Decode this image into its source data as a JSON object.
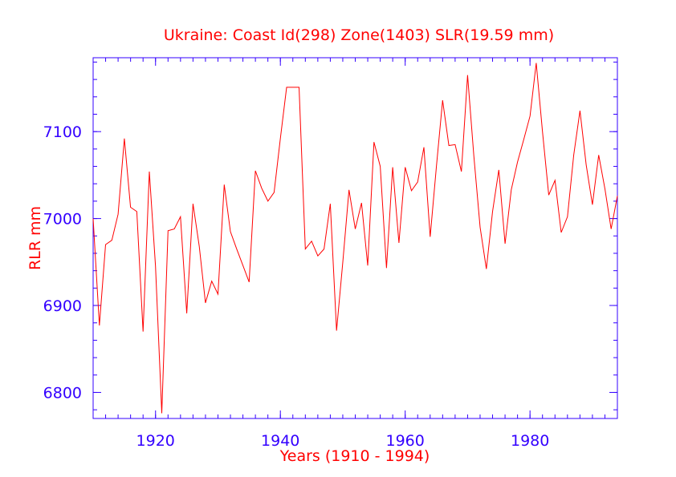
{
  "chart_data": {
    "type": "line",
    "title": "Ukraine:  Coast Id(298) Zone(1403) SLR(19.59 mm)",
    "xlabel": "Years (1910 - 1994)",
    "ylabel": "RLR mm",
    "xlim": [
      1910,
      1994
    ],
    "ylim": [
      6770,
      7185
    ],
    "x_ticks": [
      1920,
      1940,
      1960,
      1980
    ],
    "y_ticks": [
      6800,
      6900,
      7000,
      7100
    ],
    "x_minor_step": 2,
    "y_minor_step": 20,
    "grid": false,
    "colors": {
      "line": "#ff0000",
      "axes": "#3300ff",
      "text": "#ff0000",
      "tick_labels": "#3300ff"
    },
    "series": [
      {
        "x": [
          1910,
          1911,
          1912,
          1913,
          1914,
          1915,
          1916,
          1917,
          1918,
          1919,
          1920,
          1921,
          1922,
          1923,
          1924,
          1925,
          1926,
          1927,
          1928,
          1929,
          1930,
          1931,
          1932,
          1933,
          1934,
          1935,
          1936,
          1937,
          1938,
          1939,
          1940,
          1941,
          1942,
          1943,
          1944,
          1945,
          1946,
          1947,
          1948,
          1949,
          1950,
          1951,
          1952,
          1953,
          1954,
          1955,
          1956,
          1957,
          1958,
          1959,
          1960,
          1961,
          1962,
          1963,
          1964,
          1965,
          1966,
          1967,
          1968,
          1969,
          1970,
          1971,
          1972,
          1973,
          1974,
          1975,
          1976,
          1977,
          1978,
          1979,
          1980,
          1981,
          1982,
          1983,
          1984,
          1985,
          1986,
          1987,
          1988,
          1989,
          1990,
          1991,
          1992,
          1993,
          1994
        ],
        "y": [
          7000,
          6877,
          6970,
          6975,
          7005,
          7092,
          7013,
          7008,
          6870,
          7054,
          6945,
          6776,
          6986,
          6988,
          7002,
          6891,
          7017,
          6968,
          6903,
          6928,
          6913,
          7039,
          6985,
          6965,
          6946,
          6927,
          7055,
          7035,
          7020,
          7030,
          7092,
          7151,
          7151,
          7151,
          6965,
          6974,
          6957,
          6965,
          7017,
          6871,
          6950,
          7033,
          6988,
          7018,
          6946,
          7088,
          7060,
          6943,
          7059,
          6972,
          7059,
          7032,
          7042,
          7082,
          6979,
          7060,
          7136,
          7084,
          7085,
          7054,
          7165,
          7072,
          6990,
          6942,
          7008,
          7056,
          6971,
          7033,
          7065,
          7091,
          7118,
          7179,
          7100,
          7027,
          7044,
          6984,
          7002,
          7073,
          7124,
          7062,
          7016,
          7073,
          7034,
          6988,
          7026
        ]
      }
    ]
  }
}
